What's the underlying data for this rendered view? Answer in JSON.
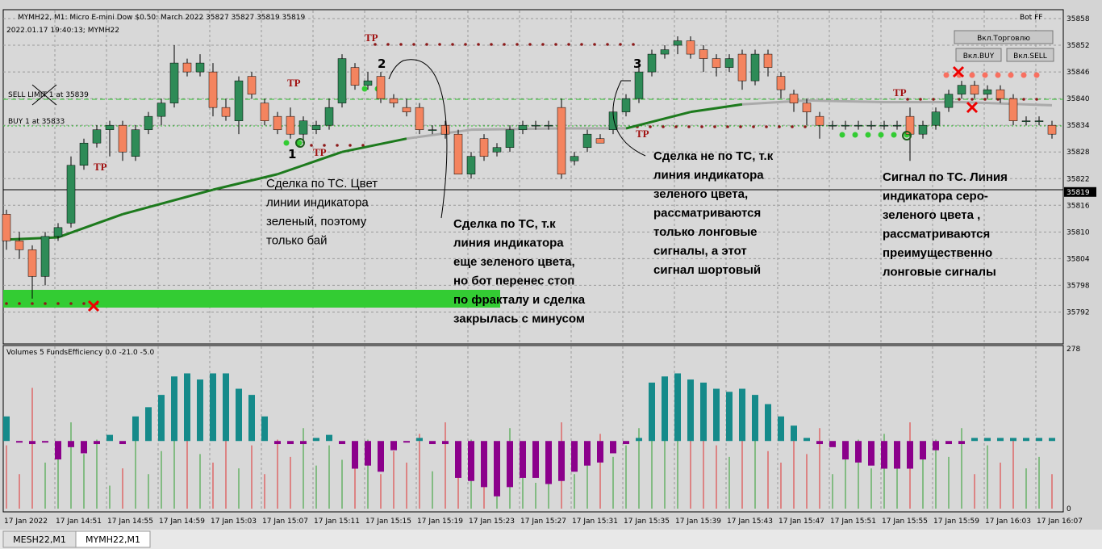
{
  "window": {
    "title": "MYMH22, M1:  Micro E-mini Dow $0.50: March 2022  35827 35827 35819 35819",
    "info": "2022.01.17 19:40:13; MYMH22",
    "bot": "Bot FF",
    "orders": [
      "SELL LIMIT 1 at 35839",
      "BUY 1 at 35833"
    ],
    "buttons": [
      "Вкл.Торговлю",
      "Вкл.BUY",
      "Вкл.SELL"
    ]
  },
  "chart": {
    "price_lim": [
      35785,
      35860
    ],
    "price_ticks": [
      35858,
      35852,
      35846,
      35840,
      35834,
      35828,
      35822,
      35816,
      35810,
      35804,
      35798,
      35792
    ],
    "current": 35819,
    "ohlc": [
      [
        35814,
        35815,
        35806,
        35808
      ],
      [
        35808,
        35810,
        35804,
        35806
      ],
      [
        35806,
        35807,
        35795,
        35800
      ],
      [
        35800,
        35810,
        35798,
        35809
      ],
      [
        35809,
        35812,
        35808,
        35811
      ],
      [
        35812,
        35827,
        35811,
        35825
      ],
      [
        35825,
        35831,
        35824,
        35830
      ],
      [
        35830,
        35834,
        35829,
        35833
      ],
      [
        35833,
        35835,
        35827,
        35834
      ],
      [
        35834,
        35835,
        35826,
        35828
      ],
      [
        35827,
        35834,
        35826,
        35833
      ],
      [
        35833,
        35837,
        35832,
        35836
      ],
      [
        35836,
        35840,
        35834,
        35839
      ],
      [
        35839,
        35852,
        35838,
        35848
      ],
      [
        35848,
        35849,
        35845,
        35846
      ],
      [
        35846,
        35850,
        35845,
        35848
      ],
      [
        35846,
        35848,
        35836,
        35838
      ],
      [
        35838,
        35840,
        35835,
        35836
      ],
      [
        35835,
        35845,
        35832,
        35844
      ],
      [
        35845,
        35846,
        35840,
        35841
      ],
      [
        35839,
        35840,
        35834,
        35835
      ],
      [
        35836,
        35837,
        35832,
        35833
      ],
      [
        35836,
        35838,
        35831,
        35832
      ],
      [
        35832,
        35836,
        35830,
        35835
      ],
      [
        35833,
        35835,
        35832,
        35834
      ],
      [
        35834,
        35840,
        35833,
        35838
      ],
      [
        35839,
        35850,
        35838,
        35849
      ],
      [
        35847,
        35848,
        35842,
        35843
      ],
      [
        35843,
        35846,
        35842,
        35844
      ],
      [
        35845,
        35846,
        35839,
        35840
      ],
      [
        35840,
        35841,
        35838,
        35839
      ],
      [
        35838,
        35840,
        35836,
        35837
      ],
      [
        35838,
        35839,
        35832,
        35833
      ],
      [
        35833,
        35834,
        35832,
        35833
      ],
      [
        35834,
        35835,
        35831,
        35832
      ],
      [
        35832,
        35833,
        35823,
        35823
      ],
      [
        35823,
        35828,
        35822,
        35827
      ],
      [
        35831,
        35832,
        35826,
        35827
      ],
      [
        35828,
        35830,
        35827,
        35829
      ],
      [
        35829,
        35834,
        35828,
        35833
      ],
      [
        35833,
        35835,
        35832,
        35834
      ],
      [
        35834,
        35835,
        35833,
        35834
      ],
      [
        35834,
        35835,
        35833,
        35834
      ],
      [
        35838,
        35840,
        35822,
        35823
      ],
      [
        35826,
        35828,
        35825,
        35827
      ],
      [
        35829,
        35833,
        35828,
        35832
      ],
      [
        35831,
        35832,
        35830,
        35830
      ],
      [
        35833,
        35838,
        35832,
        35837
      ],
      [
        35837,
        35841,
        35836,
        35840
      ],
      [
        35840,
        35847,
        35839,
        35846
      ],
      [
        35846,
        35851,
        35845,
        35850
      ],
      [
        35850,
        35852,
        35849,
        35851
      ],
      [
        35852,
        35854,
        35850,
        35853
      ],
      [
        35853,
        35854,
        35849,
        35850
      ],
      [
        35851,
        35852,
        35846,
        35849
      ],
      [
        35849,
        35850,
        35845,
        35847
      ],
      [
        35847,
        35850,
        35846,
        35849
      ],
      [
        35850,
        35851,
        35842,
        35844
      ],
      [
        35844,
        35851,
        35843,
        35850
      ],
      [
        35850,
        35851,
        35845,
        35847
      ],
      [
        35845,
        35846,
        35840,
        35842
      ],
      [
        35841,
        35842,
        35837,
        35839
      ],
      [
        35839,
        35840,
        35834,
        35837
      ],
      [
        35836,
        35837,
        35831,
        35834
      ],
      [
        35834,
        35835,
        35833,
        35834
      ],
      [
        35834,
        35835,
        35833,
        35834
      ],
      [
        35834,
        35835,
        35833,
        35834
      ],
      [
        35834,
        35835,
        35833,
        35834
      ],
      [
        35834,
        35835,
        35833,
        35834
      ],
      [
        35834,
        35835,
        35833,
        35834
      ],
      [
        35836,
        35838,
        35826,
        35832
      ],
      [
        35832,
        35835,
        35831,
        35834
      ],
      [
        35834,
        35838,
        35833,
        35837
      ],
      [
        35838,
        35842,
        35837,
        35841
      ],
      [
        35841,
        35844,
        35840,
        35843
      ],
      [
        35843,
        35844,
        35840,
        35841
      ],
      [
        35841,
        35843,
        35840,
        35842
      ],
      [
        35842,
        35843,
        35839,
        35840
      ],
      [
        35840,
        35841,
        35834,
        35835
      ],
      [
        35835,
        35836,
        35834,
        35835
      ],
      [
        35835,
        35836,
        35834,
        35835
      ],
      [
        35834,
        35835,
        35831,
        35832
      ]
    ],
    "ma": {
      "x": [
        0,
        4,
        9,
        16,
        21,
        26,
        31,
        36,
        43,
        48,
        53,
        57,
        62,
        68,
        74,
        81
      ],
      "values": [
        35808.3,
        35808.8,
        35814,
        35819.5,
        35823,
        35828,
        35831,
        35833,
        35833.3,
        35833.3,
        35837,
        35838.7,
        35839.6,
        35839.2,
        35839.2,
        35838.5
      ],
      "colors": [
        "#1d7a1d",
        "#1d7a1d",
        "#1d7a1d",
        "#1d7a1d",
        "#1d7a1d",
        "#1d7a1d",
        "#aaaaaa",
        "#aaaaaa",
        "#aaaaaa",
        "#1d7a1d",
        "#1d7a1d",
        "#aaaaaa",
        "#aaaaaa",
        "#aaaaaa",
        "#aaaaaa"
      ]
    },
    "tp": [
      "TP",
      "TP",
      "TP",
      "TP",
      "TP",
      "TP"
    ],
    "marks": [
      "1",
      "2",
      "3"
    ],
    "notes": [
      {
        "bold": false,
        "lines": [
          "Сделка по ТС. Цвет",
          "линии индикатора",
          "зеленый, поэтому",
          "только бай"
        ]
      },
      {
        "bold": true,
        "lines": [
          "Сделка по ТС, т.к",
          "линия индикатора",
          "еще зеленого цвета,",
          "но бот перенес стоп",
          "по фракталу и сделка",
          "закрылась с минусом"
        ]
      },
      {
        "bold": true,
        "lines": [
          "Сделка не по ТС, т.к",
          "линия индикатора",
          "зеленого цвета,",
          "рассматриваются",
          "только лонговые",
          "сигналы, а этот",
          "сигнал шортовый"
        ]
      },
      {
        "bold": true,
        "lines": [
          "Сигнал по ТС. Линия",
          "индикатора серо-",
          "зеленого цвета ,",
          "рассматриваются",
          "преимущественно",
          "лонговые сигналы"
        ]
      }
    ]
  },
  "indicator": {
    "title": "Volumes 5 FundsEfficiency 0.0 -21.0 -5.0",
    "lim": [
      0,
      278
    ],
    "ticks": [
      278,
      0
    ],
    "eff_lim": [
      -110,
      150
    ],
    "volumes": [
      110,
      60,
      210,
      80,
      100,
      150,
      95,
      120,
      40,
      70,
      140,
      60,
      100,
      130,
      170,
      95,
      80,
      140,
      70,
      110,
      60,
      120,
      90,
      140,
      75,
      110,
      85,
      70,
      120,
      60,
      100,
      80,
      130,
      65,
      150,
      90,
      120,
      110,
      60,
      140,
      70,
      45,
      85,
      150,
      60,
      95,
      130,
      90,
      110,
      140,
      160,
      200,
      120,
      150,
      170,
      110,
      90,
      140,
      180,
      100,
      80,
      120,
      95,
      140,
      60,
      110,
      120,
      70,
      130,
      80,
      150,
      100,
      120,
      90,
      140,
      60,
      110,
      80,
      120,
      70,
      90,
      60
    ],
    "efficiency": [
      40,
      -2,
      -5,
      -2,
      -30,
      -10,
      -20,
      -5,
      10,
      -5,
      40,
      55,
      75,
      105,
      110,
      100,
      110,
      110,
      85,
      75,
      40,
      -5,
      -5,
      -5,
      5,
      10,
      -5,
      -45,
      -40,
      -50,
      -15,
      -2,
      5,
      -5,
      -5,
      -60,
      -65,
      -75,
      -90,
      -75,
      -60,
      -60,
      -70,
      -65,
      -50,
      -40,
      -35,
      -20,
      -5,
      5,
      95,
      105,
      110,
      100,
      95,
      85,
      80,
      85,
      75,
      60,
      40,
      25,
      5,
      -5,
      -10,
      -30,
      -35,
      -40,
      -45,
      -45,
      -45,
      -30,
      -15,
      -5,
      -5,
      5,
      5,
      5,
      5,
      5,
      5,
      5
    ]
  },
  "time_axis": [
    "17 Jan 2022",
    "17 Jan 14:51",
    "17 Jan 14:55",
    "17 Jan 14:59",
    "17 Jan 15:03",
    "17 Jan 15:07",
    "17 Jan 15:11",
    "17 Jan 15:15",
    "17 Jan 15:19",
    "17 Jan 15:23",
    "17 Jan 15:27",
    "17 Jan 15:31",
    "17 Jan 15:35",
    "17 Jan 15:39",
    "17 Jan 15:43",
    "17 Jan 15:47",
    "17 Jan 15:51",
    "17 Jan 15:55",
    "17 Jan 15:59",
    "17 Jan 16:03",
    "17 Jan 16:07"
  ],
  "tabs": [
    "MESH22,M1",
    "MYMH22,M1"
  ]
}
